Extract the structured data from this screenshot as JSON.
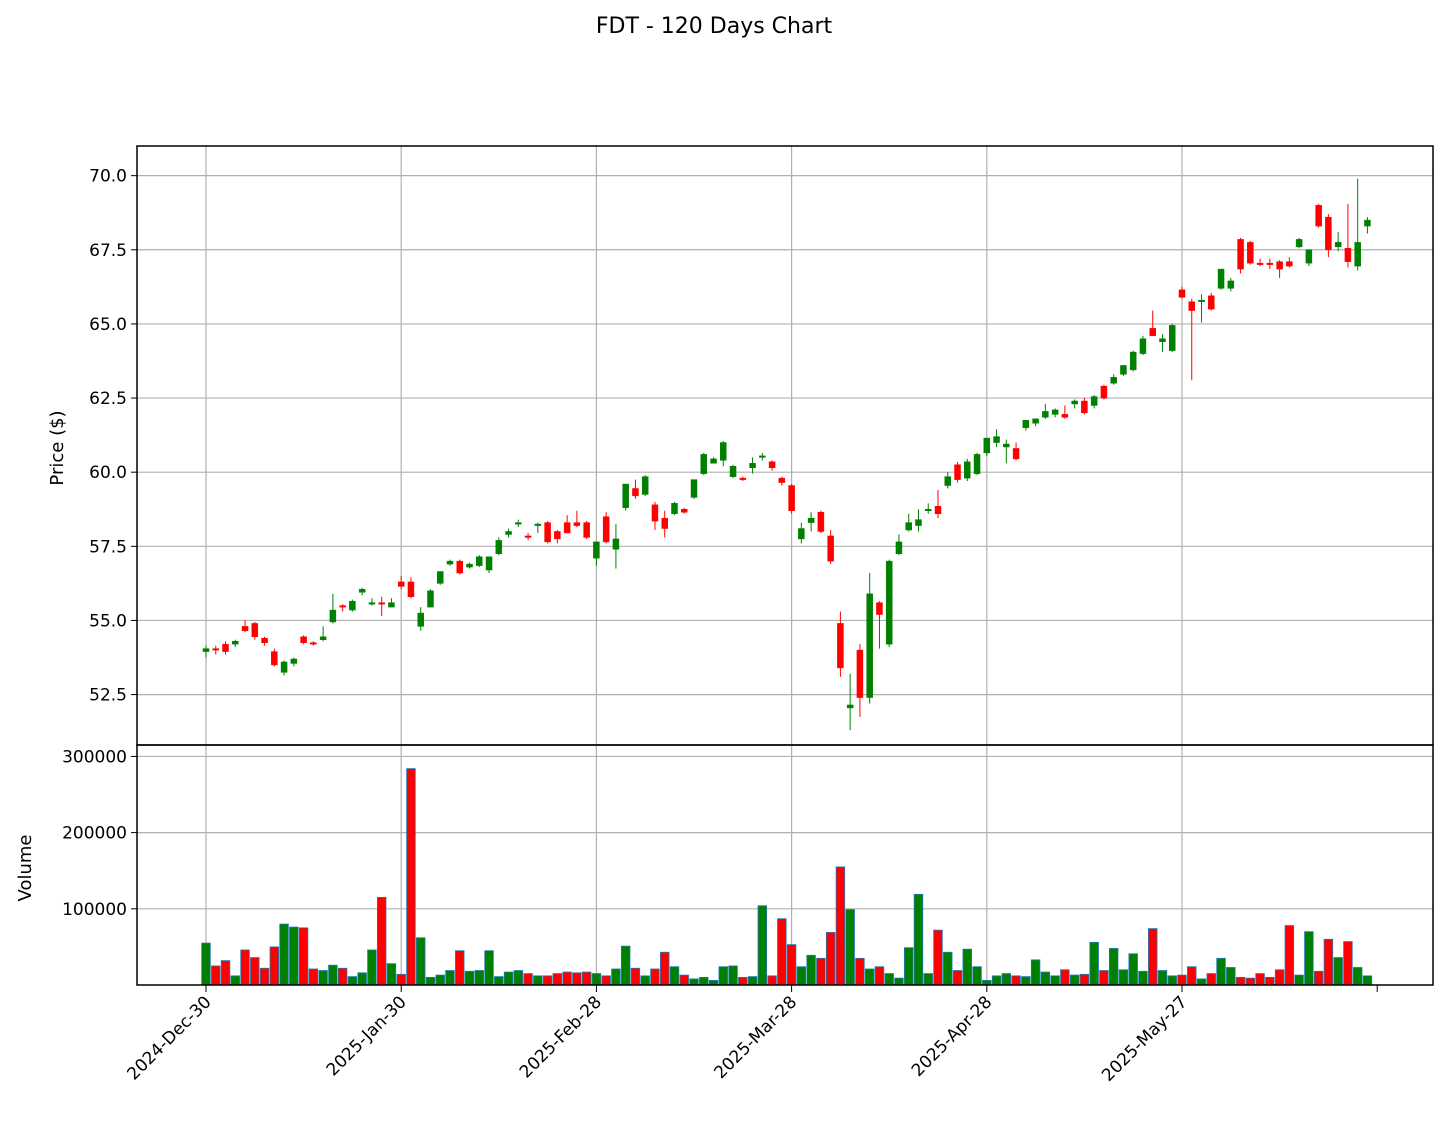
{
  "title": "FDT - 120 Days Chart",
  "colors": {
    "up": "#008000",
    "down": "#ff0000",
    "volume_edge": "#1f77b4",
    "grid": "#b0b0b0",
    "axis": "#000000"
  },
  "chart_data": [
    {
      "type": "candlestick",
      "title": "FDT - 120 Days Chart",
      "ylabel": "Price ($)",
      "ylim": [
        50.8,
        71.0
      ],
      "y_ticks": [
        52.5,
        55.0,
        57.5,
        60.0,
        62.5,
        65.0,
        67.5,
        70.0
      ],
      "y_tick_labels": [
        "52.5",
        "55.0",
        "57.5",
        "60.0",
        "62.5",
        "65.0",
        "67.5",
        "70.0"
      ],
      "x_tick_labels": [
        "2024-Dec-30",
        "2025-Jan-30",
        "2025-Feb-28",
        "2025-Mar-28",
        "2025-Apr-28",
        "2025-May-27"
      ],
      "x_tick_positions": [
        0,
        20,
        40,
        60,
        80,
        100
      ],
      "grid": true,
      "candle_fields": [
        "open",
        "high",
        "low",
        "close"
      ],
      "candles": [
        [
          53.95,
          54.15,
          53.75,
          54.05
        ],
        [
          54.05,
          54.15,
          53.85,
          54.0
        ],
        [
          54.2,
          54.3,
          53.85,
          53.95
        ],
        [
          54.2,
          54.35,
          54.1,
          54.3
        ],
        [
          54.8,
          55.0,
          54.6,
          54.65
        ],
        [
          54.9,
          54.95,
          54.35,
          54.45
        ],
        [
          54.4,
          54.45,
          54.15,
          54.25
        ],
        [
          53.95,
          54.05,
          53.45,
          53.5
        ],
        [
          53.25,
          53.65,
          53.15,
          53.6
        ],
        [
          53.55,
          53.75,
          53.45,
          53.7
        ],
        [
          54.45,
          54.5,
          54.2,
          54.25
        ],
        [
          54.25,
          54.3,
          54.15,
          54.2
        ],
        [
          54.35,
          54.8,
          54.3,
          54.45
        ],
        [
          54.95,
          55.9,
          54.9,
          55.35
        ],
        [
          55.5,
          55.55,
          55.3,
          55.45
        ],
        [
          55.35,
          55.7,
          55.3,
          55.65
        ],
        [
          55.95,
          56.1,
          55.85,
          56.05
        ],
        [
          55.6,
          55.75,
          55.5,
          55.6
        ],
        [
          55.6,
          55.8,
          55.15,
          55.55
        ],
        [
          55.45,
          55.75,
          55.45,
          55.6
        ],
        [
          56.3,
          56.5,
          56.05,
          56.15
        ],
        [
          56.3,
          56.45,
          55.75,
          55.8
        ],
        [
          54.8,
          55.45,
          54.65,
          55.25
        ],
        [
          55.45,
          56.05,
          55.45,
          56.0
        ],
        [
          56.25,
          56.65,
          56.2,
          56.65
        ],
        [
          56.9,
          57.05,
          56.85,
          57.0
        ],
        [
          57.0,
          57.05,
          56.55,
          56.6
        ],
        [
          56.8,
          56.95,
          56.75,
          56.9
        ],
        [
          56.85,
          57.2,
          56.8,
          57.15
        ],
        [
          56.7,
          57.15,
          56.6,
          57.15
        ],
        [
          57.25,
          57.8,
          57.2,
          57.7
        ],
        [
          57.9,
          58.1,
          57.8,
          58.0
        ],
        [
          58.25,
          58.4,
          58.15,
          58.3
        ],
        [
          57.85,
          57.95,
          57.7,
          57.8
        ],
        [
          58.2,
          58.3,
          57.95,
          58.25
        ],
        [
          58.3,
          58.35,
          57.6,
          57.65
        ],
        [
          58.0,
          58.05,
          57.6,
          57.75
        ],
        [
          58.3,
          58.55,
          57.95,
          57.95
        ],
        [
          58.3,
          58.7,
          58.15,
          58.2
        ],
        [
          58.3,
          58.35,
          57.75,
          57.8
        ],
        [
          57.1,
          57.65,
          56.85,
          57.65
        ],
        [
          58.5,
          58.65,
          57.6,
          57.65
        ],
        [
          57.4,
          58.25,
          56.75,
          57.75
        ],
        [
          58.8,
          59.6,
          58.7,
          59.6
        ],
        [
          59.45,
          59.75,
          59.1,
          59.2
        ],
        [
          59.25,
          59.9,
          59.2,
          59.85
        ],
        [
          58.9,
          59.0,
          58.05,
          58.35
        ],
        [
          58.45,
          58.7,
          57.8,
          58.1
        ],
        [
          58.6,
          59.0,
          58.55,
          58.95
        ],
        [
          58.75,
          58.8,
          58.6,
          58.65
        ],
        [
          59.15,
          59.75,
          59.1,
          59.75
        ],
        [
          59.95,
          60.65,
          59.9,
          60.6
        ],
        [
          60.3,
          60.5,
          60.3,
          60.45
        ],
        [
          60.4,
          61.05,
          60.2,
          61.0
        ],
        [
          59.85,
          60.25,
          59.8,
          60.2
        ],
        [
          59.8,
          59.85,
          59.7,
          59.75
        ],
        [
          60.15,
          60.5,
          59.95,
          60.3
        ],
        [
          60.5,
          60.65,
          60.4,
          60.55
        ],
        [
          60.35,
          60.4,
          60.05,
          60.15
        ],
        [
          59.8,
          59.85,
          59.55,
          59.65
        ],
        [
          59.55,
          59.6,
          58.6,
          58.7
        ],
        [
          57.75,
          58.3,
          57.6,
          58.1
        ],
        [
          58.3,
          58.65,
          58.0,
          58.45
        ],
        [
          58.65,
          58.7,
          57.95,
          58.0
        ],
        [
          57.85,
          58.05,
          56.9,
          57.0
        ],
        [
          54.9,
          55.3,
          53.1,
          53.4
        ],
        [
          52.05,
          53.2,
          51.3,
          52.15
        ],
        [
          54.0,
          54.2,
          51.75,
          52.4
        ],
        [
          52.4,
          56.6,
          52.2,
          55.9
        ],
        [
          55.6,
          55.65,
          54.05,
          55.2
        ],
        [
          54.2,
          57.05,
          54.1,
          57.0
        ],
        [
          57.25,
          57.9,
          57.2,
          57.65
        ],
        [
          58.05,
          58.6,
          58.0,
          58.3
        ],
        [
          58.2,
          58.75,
          58.0,
          58.4
        ],
        [
          58.7,
          58.95,
          58.6,
          58.75
        ],
        [
          58.85,
          59.4,
          58.45,
          58.6
        ],
        [
          59.55,
          60.0,
          59.45,
          59.85
        ],
        [
          60.25,
          60.35,
          59.65,
          59.75
        ],
        [
          59.8,
          60.45,
          59.7,
          60.35
        ],
        [
          59.95,
          60.65,
          59.9,
          60.6
        ],
        [
          60.65,
          61.15,
          60.55,
          61.15
        ],
        [
          61.0,
          61.45,
          60.85,
          61.2
        ],
        [
          60.85,
          61.1,
          60.3,
          60.95
        ],
        [
          60.8,
          61.0,
          60.4,
          60.45
        ],
        [
          61.5,
          61.75,
          61.4,
          61.75
        ],
        [
          61.65,
          61.8,
          61.55,
          61.8
        ],
        [
          61.85,
          62.3,
          61.8,
          62.05
        ],
        [
          61.95,
          62.15,
          61.85,
          62.1
        ],
        [
          61.95,
          62.25,
          61.8,
          61.85
        ],
        [
          62.3,
          62.45,
          62.15,
          62.4
        ],
        [
          62.4,
          62.5,
          61.95,
          62.0
        ],
        [
          62.25,
          62.6,
          62.15,
          62.55
        ],
        [
          62.9,
          62.95,
          62.45,
          62.5
        ],
        [
          63.0,
          63.3,
          62.95,
          63.2
        ],
        [
          63.3,
          63.6,
          63.25,
          63.6
        ],
        [
          63.45,
          64.1,
          63.4,
          64.05
        ],
        [
          64.0,
          64.6,
          63.95,
          64.5
        ],
        [
          64.85,
          65.45,
          64.6,
          64.6
        ],
        [
          64.4,
          64.65,
          64.05,
          64.5
        ],
        [
          64.1,
          65.0,
          64.05,
          64.95
        ],
        [
          66.15,
          66.25,
          65.85,
          65.9
        ],
        [
          65.75,
          65.85,
          63.1,
          65.45
        ],
        [
          65.75,
          66.0,
          65.05,
          65.8
        ],
        [
          65.95,
          66.05,
          65.45,
          65.5
        ],
        [
          66.2,
          66.85,
          66.15,
          66.85
        ],
        [
          66.2,
          66.55,
          66.1,
          66.45
        ],
        [
          67.85,
          67.9,
          66.7,
          66.85
        ],
        [
          67.75,
          67.8,
          67.0,
          67.05
        ],
        [
          67.05,
          67.2,
          66.95,
          67.0
        ],
        [
          67.05,
          67.2,
          66.85,
          67.0
        ],
        [
          67.1,
          67.15,
          66.55,
          66.85
        ],
        [
          67.1,
          67.25,
          66.9,
          66.95
        ],
        [
          67.6,
          67.9,
          67.55,
          67.85
        ],
        [
          67.05,
          67.5,
          66.95,
          67.5
        ],
        [
          69.0,
          69.05,
          68.25,
          68.3
        ],
        [
          68.6,
          68.7,
          67.25,
          67.5
        ],
        [
          67.6,
          68.1,
          67.45,
          67.75
        ],
        [
          67.55,
          69.05,
          66.9,
          67.1
        ],
        [
          66.95,
          69.9,
          66.8,
          67.75
        ],
        [
          68.3,
          68.6,
          68.05,
          68.5
        ]
      ]
    },
    {
      "type": "bar",
      "ylabel": "Volume",
      "ylim": [
        0,
        315000
      ],
      "y_ticks": [
        100000,
        200000,
        300000
      ],
      "y_tick_labels": [
        "100000",
        "200000",
        "300000"
      ],
      "grid": true,
      "values": [
        55000,
        25000,
        32000,
        12000,
        46000,
        36000,
        22000,
        50000,
        80000,
        76000,
        75000,
        21000,
        19000,
        26000,
        22000,
        11000,
        16000,
        46000,
        115000,
        28000,
        14000,
        284000,
        62000,
        10000,
        13000,
        19000,
        45000,
        18000,
        19000,
        45000,
        11000,
        17000,
        19000,
        15000,
        12000,
        12000,
        15000,
        17000,
        16000,
        17000,
        15000,
        12000,
        21000,
        51000,
        22000,
        12000,
        21000,
        43000,
        24000,
        13000,
        8000,
        10000,
        6000,
        24000,
        25000,
        10000,
        11000,
        104000,
        12000,
        87000,
        53000,
        24000,
        39000,
        35000,
        69000,
        155000,
        99000,
        35000,
        21000,
        24000,
        15000,
        9000,
        49000,
        119000,
        15000,
        72000,
        43000,
        19000,
        47000,
        24000,
        6000,
        12000,
        15000,
        12000,
        11000,
        33000,
        17000,
        12000,
        20000,
        13000,
        14000,
        56000,
        19000,
        48000,
        20000,
        41000,
        18000,
        74000,
        19000,
        12000,
        13000,
        24000,
        8000,
        15000,
        35000,
        23000,
        10000,
        9000,
        15000,
        10000,
        20000,
        78000,
        13000,
        70000,
        18000,
        60000,
        36000,
        57000,
        23000,
        12000
      ]
    }
  ]
}
